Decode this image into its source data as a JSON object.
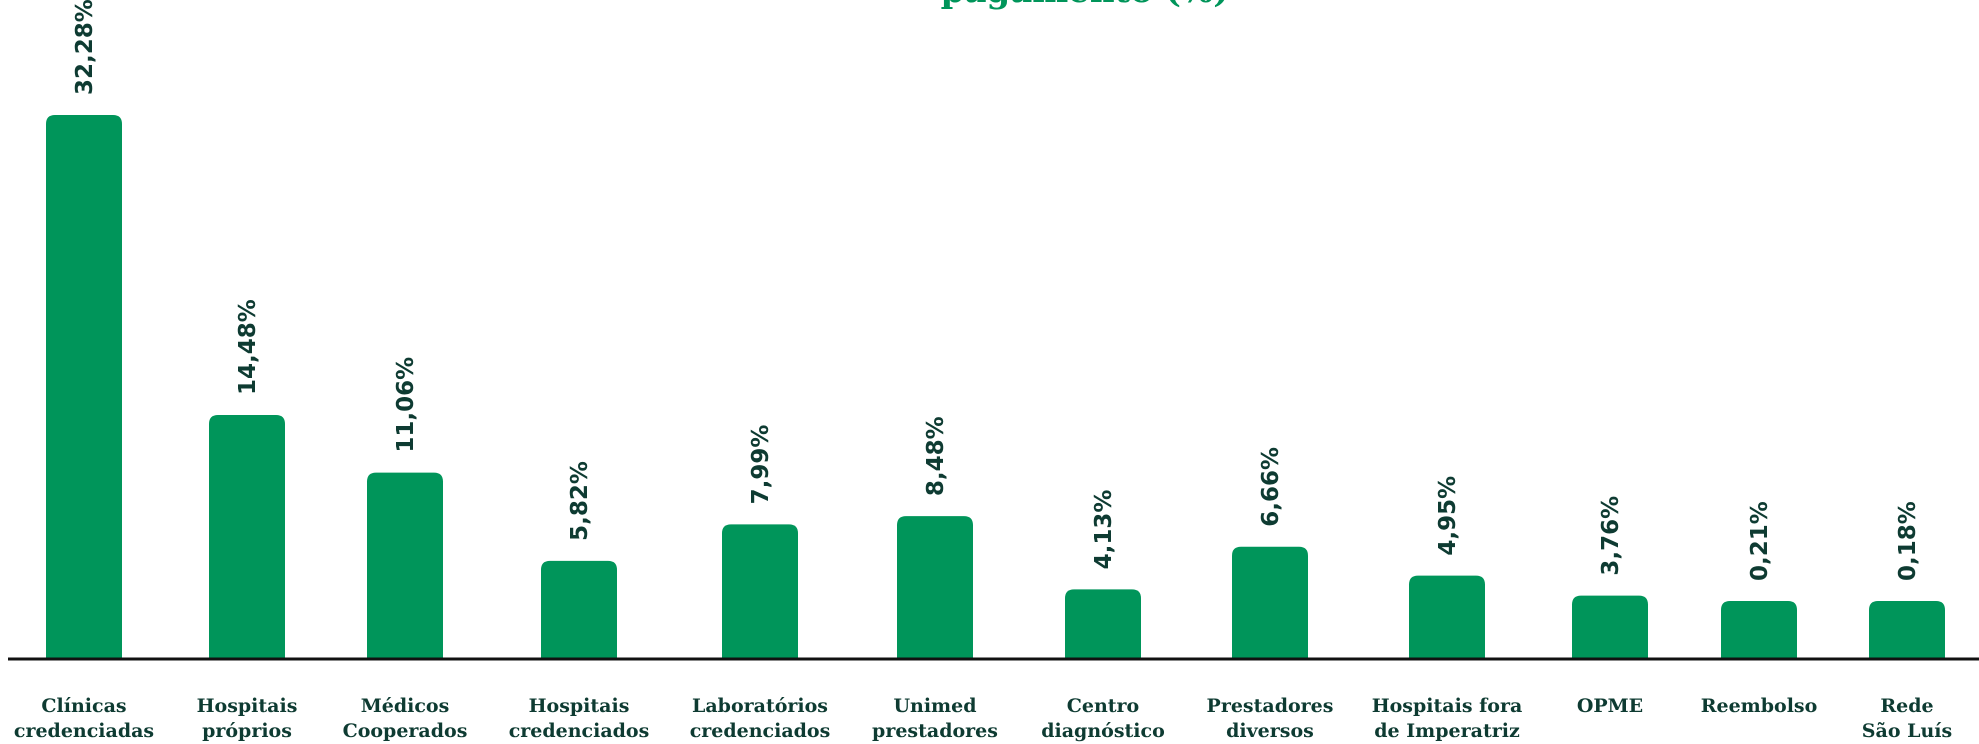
{
  "title": "pagamento (%)",
  "colors": {
    "bar": "#00955a",
    "text": "#0e3b32",
    "axis": "#111111",
    "title": "#00955a"
  },
  "chart_data": {
    "type": "bar",
    "title": "pagamento (%)",
    "xlabel": "",
    "ylabel": "",
    "ylim": [
      0,
      32.28
    ],
    "grid": false,
    "categories": [
      [
        "Clínicas",
        "credenciadas"
      ],
      [
        "Hospitais",
        "próprios"
      ],
      [
        "Médicos",
        "Cooperados"
      ],
      [
        "Hospitais",
        "credenciados"
      ],
      [
        "Laboratórios",
        "credenciados"
      ],
      [
        "Unimed",
        "prestadores"
      ],
      [
        "Centro",
        "diagnóstico"
      ],
      [
        "Prestadores",
        "diversos"
      ],
      [
        "Hospitais fora",
        "de Imperatriz"
      ],
      [
        "OPME"
      ],
      [
        "Reembolso"
      ],
      [
        "Rede",
        "São Luís"
      ]
    ],
    "values": [
      32.28,
      14.48,
      11.06,
      5.82,
      7.99,
      8.48,
      4.13,
      6.66,
      4.95,
      3.76,
      0.21,
      0.18
    ],
    "labels": [
      "32,28%",
      "14,48%",
      "11,06%",
      "5,82%",
      "7,99%",
      "8,48%",
      "4,13%",
      "6,66%",
      "4,95%",
      "3,76%",
      "0,21%",
      "0,18%"
    ]
  }
}
